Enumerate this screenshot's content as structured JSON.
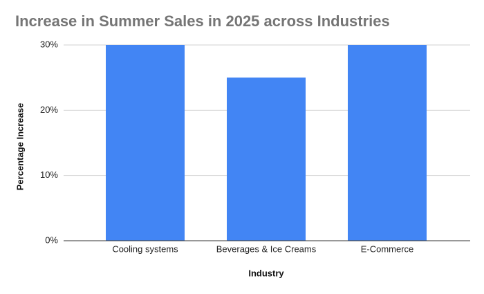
{
  "chart_data": {
    "type": "bar",
    "title": "Increase in Summer Sales in 2025 across Industries",
    "x_label": "Industry",
    "y_label": "Percentage Increase",
    "categories": [
      "Cooling systems",
      "Beverages & Ice Creams",
      "E-Commerce"
    ],
    "values": [
      30,
      25,
      30
    ],
    "color": "#4285f4",
    "ylim": [
      0,
      30
    ],
    "yticks": [
      {
        "value": 0,
        "label": "0%"
      },
      {
        "value": 10,
        "label": "10%"
      },
      {
        "value": 20,
        "label": "20%"
      },
      {
        "value": 30,
        "label": "30%"
      }
    ],
    "grid": true
  }
}
